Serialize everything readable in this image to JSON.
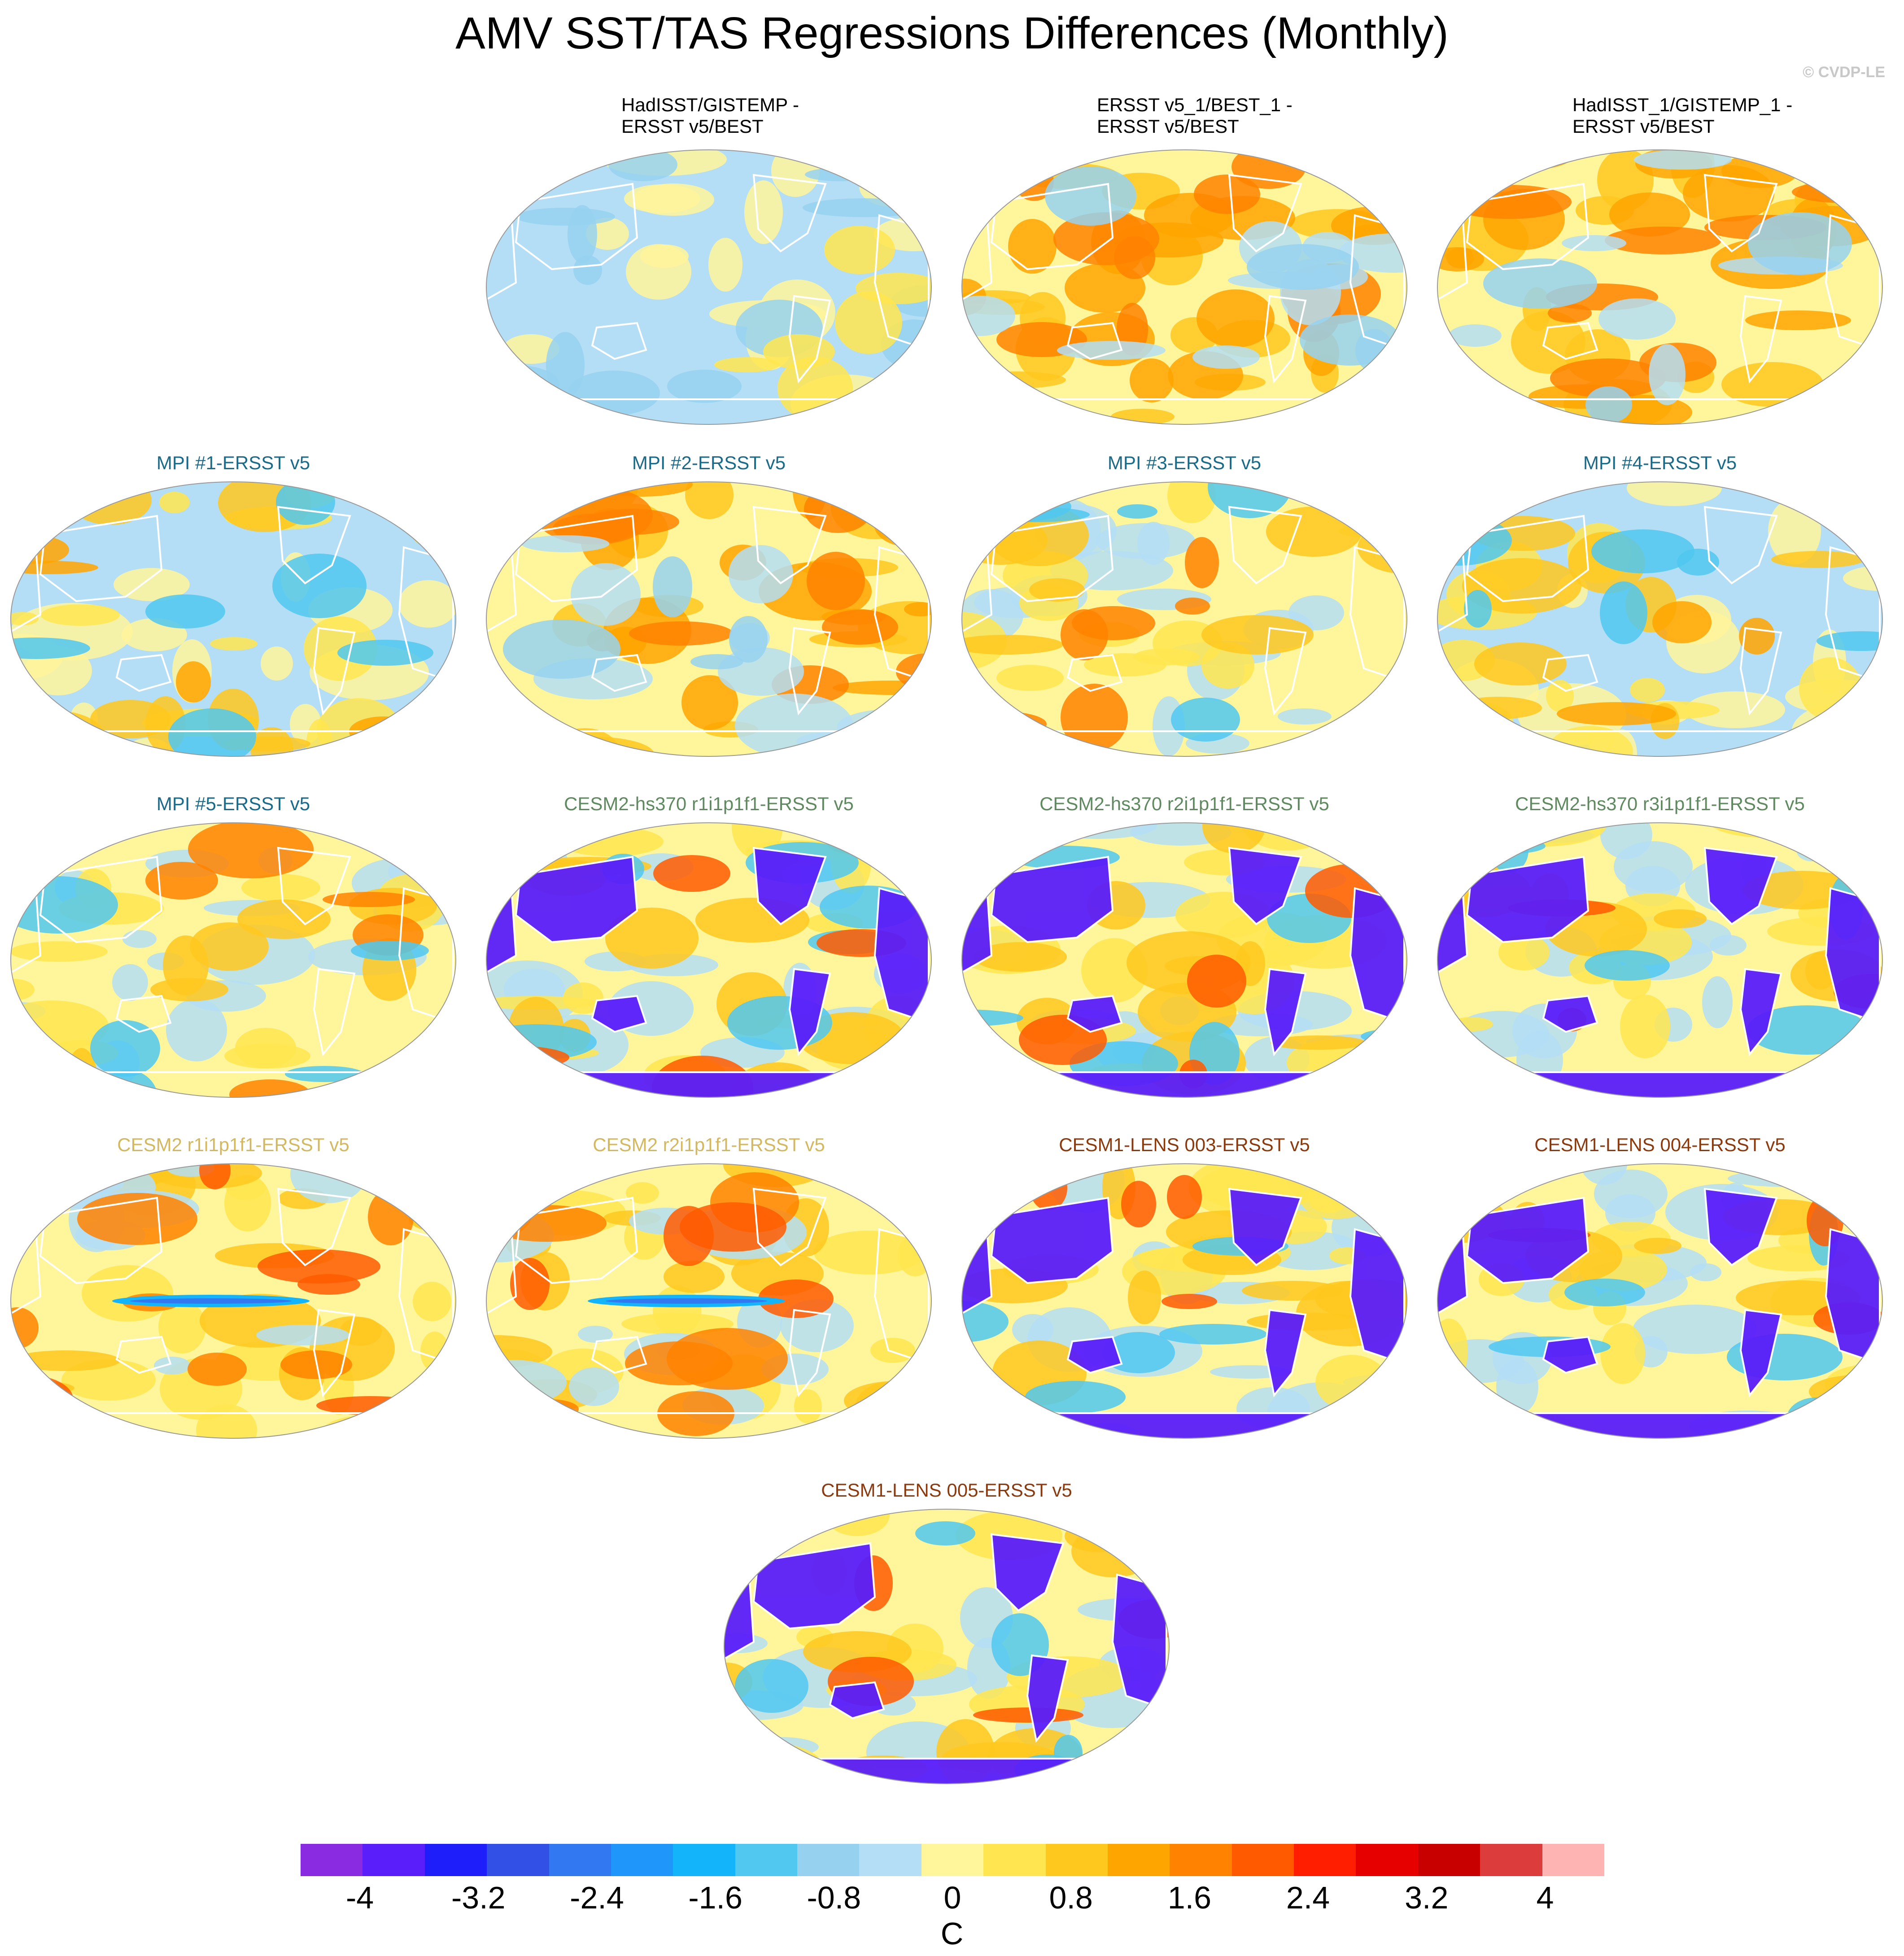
{
  "title": "AMV SST/TAS Regressions Differences (Monthly)",
  "credit": "© CVDP-LE",
  "panels": [
    {
      "id": "p1",
      "line1": "HadISST/GISTEMP -",
      "line2": "ERSST v5/BEST",
      "color": "#000000",
      "pattern": "weak-cool"
    },
    {
      "id": "p2",
      "line1": "ERSST v5_1/BEST_1 -",
      "line2": "ERSST v5/BEST",
      "color": "#000000",
      "pattern": "warm-mixed"
    },
    {
      "id": "p3",
      "line1": "HadISST_1/GISTEMP_1 -",
      "line2": "ERSST v5/BEST",
      "color": "#000000",
      "pattern": "warm-mixed"
    },
    {
      "id": "p4",
      "label": "MPI #1-ERSST v5",
      "color": "#1a6b8a",
      "pattern": "mixed-cool"
    },
    {
      "id": "p5",
      "label": "MPI #2-ERSST v5",
      "color": "#1a6b8a",
      "pattern": "warm-mixed"
    },
    {
      "id": "p6",
      "label": "MPI #3-ERSST v5",
      "color": "#1a6b8a",
      "pattern": "mixed"
    },
    {
      "id": "p7",
      "label": "MPI #4-ERSST v5",
      "color": "#1a6b8a",
      "pattern": "mixed-cool"
    },
    {
      "id": "p8",
      "label": "MPI #5-ERSST v5",
      "color": "#1a6b8a",
      "pattern": "mixed"
    },
    {
      "id": "p9",
      "label": "CESM2-hs370 r1i1p1f1-ERSST v5",
      "color": "#5f8a5f",
      "pattern": "land-cold"
    },
    {
      "id": "p10",
      "label": "CESM2-hs370 r2i1p1f1-ERSST v5",
      "color": "#5f8a5f",
      "pattern": "land-cold"
    },
    {
      "id": "p11",
      "label": "CESM2-hs370 r3i1p1f1-ERSST v5",
      "color": "#5f8a5f",
      "pattern": "land-cold"
    },
    {
      "id": "p12",
      "label": "CESM2 r1i1p1f1-ERSST v5",
      "color": "#d4b860",
      "pattern": "warm-band"
    },
    {
      "id": "p13",
      "label": "CESM2 r2i1p1f1-ERSST v5",
      "color": "#d4b860",
      "pattern": "warm-band"
    },
    {
      "id": "p14",
      "label": "CESM1-LENS 003-ERSST v5",
      "color": "#8b3a0e",
      "pattern": "land-cold"
    },
    {
      "id": "p15",
      "label": "CESM1-LENS 004-ERSST v5",
      "color": "#8b3a0e",
      "pattern": "land-cold"
    },
    {
      "id": "p16",
      "label": "CESM1-LENS 005-ERSST v5",
      "color": "#8b3a0e",
      "pattern": "land-cold"
    }
  ],
  "colorbar": {
    "colors": [
      "#8a2be2",
      "#5a1efa",
      "#1e1efa",
      "#3250e6",
      "#3278f0",
      "#1e96fa",
      "#14b4fa",
      "#50c8f0",
      "#96d2f0",
      "#b4def5",
      "#fff59b",
      "#ffe650",
      "#ffc81e",
      "#ffa500",
      "#ff8200",
      "#ff5a00",
      "#ff1e00",
      "#e60000",
      "#c80000",
      "#dc3c3c",
      "#ffb4b4"
    ],
    "ticks": [
      "-4",
      "-3.2",
      "-2.4",
      "-1.6",
      "-0.8",
      "0",
      "0.8",
      "1.6",
      "2.4",
      "3.2",
      "4"
    ],
    "units": "C",
    "range": [
      -4.4,
      4.4
    ]
  }
}
